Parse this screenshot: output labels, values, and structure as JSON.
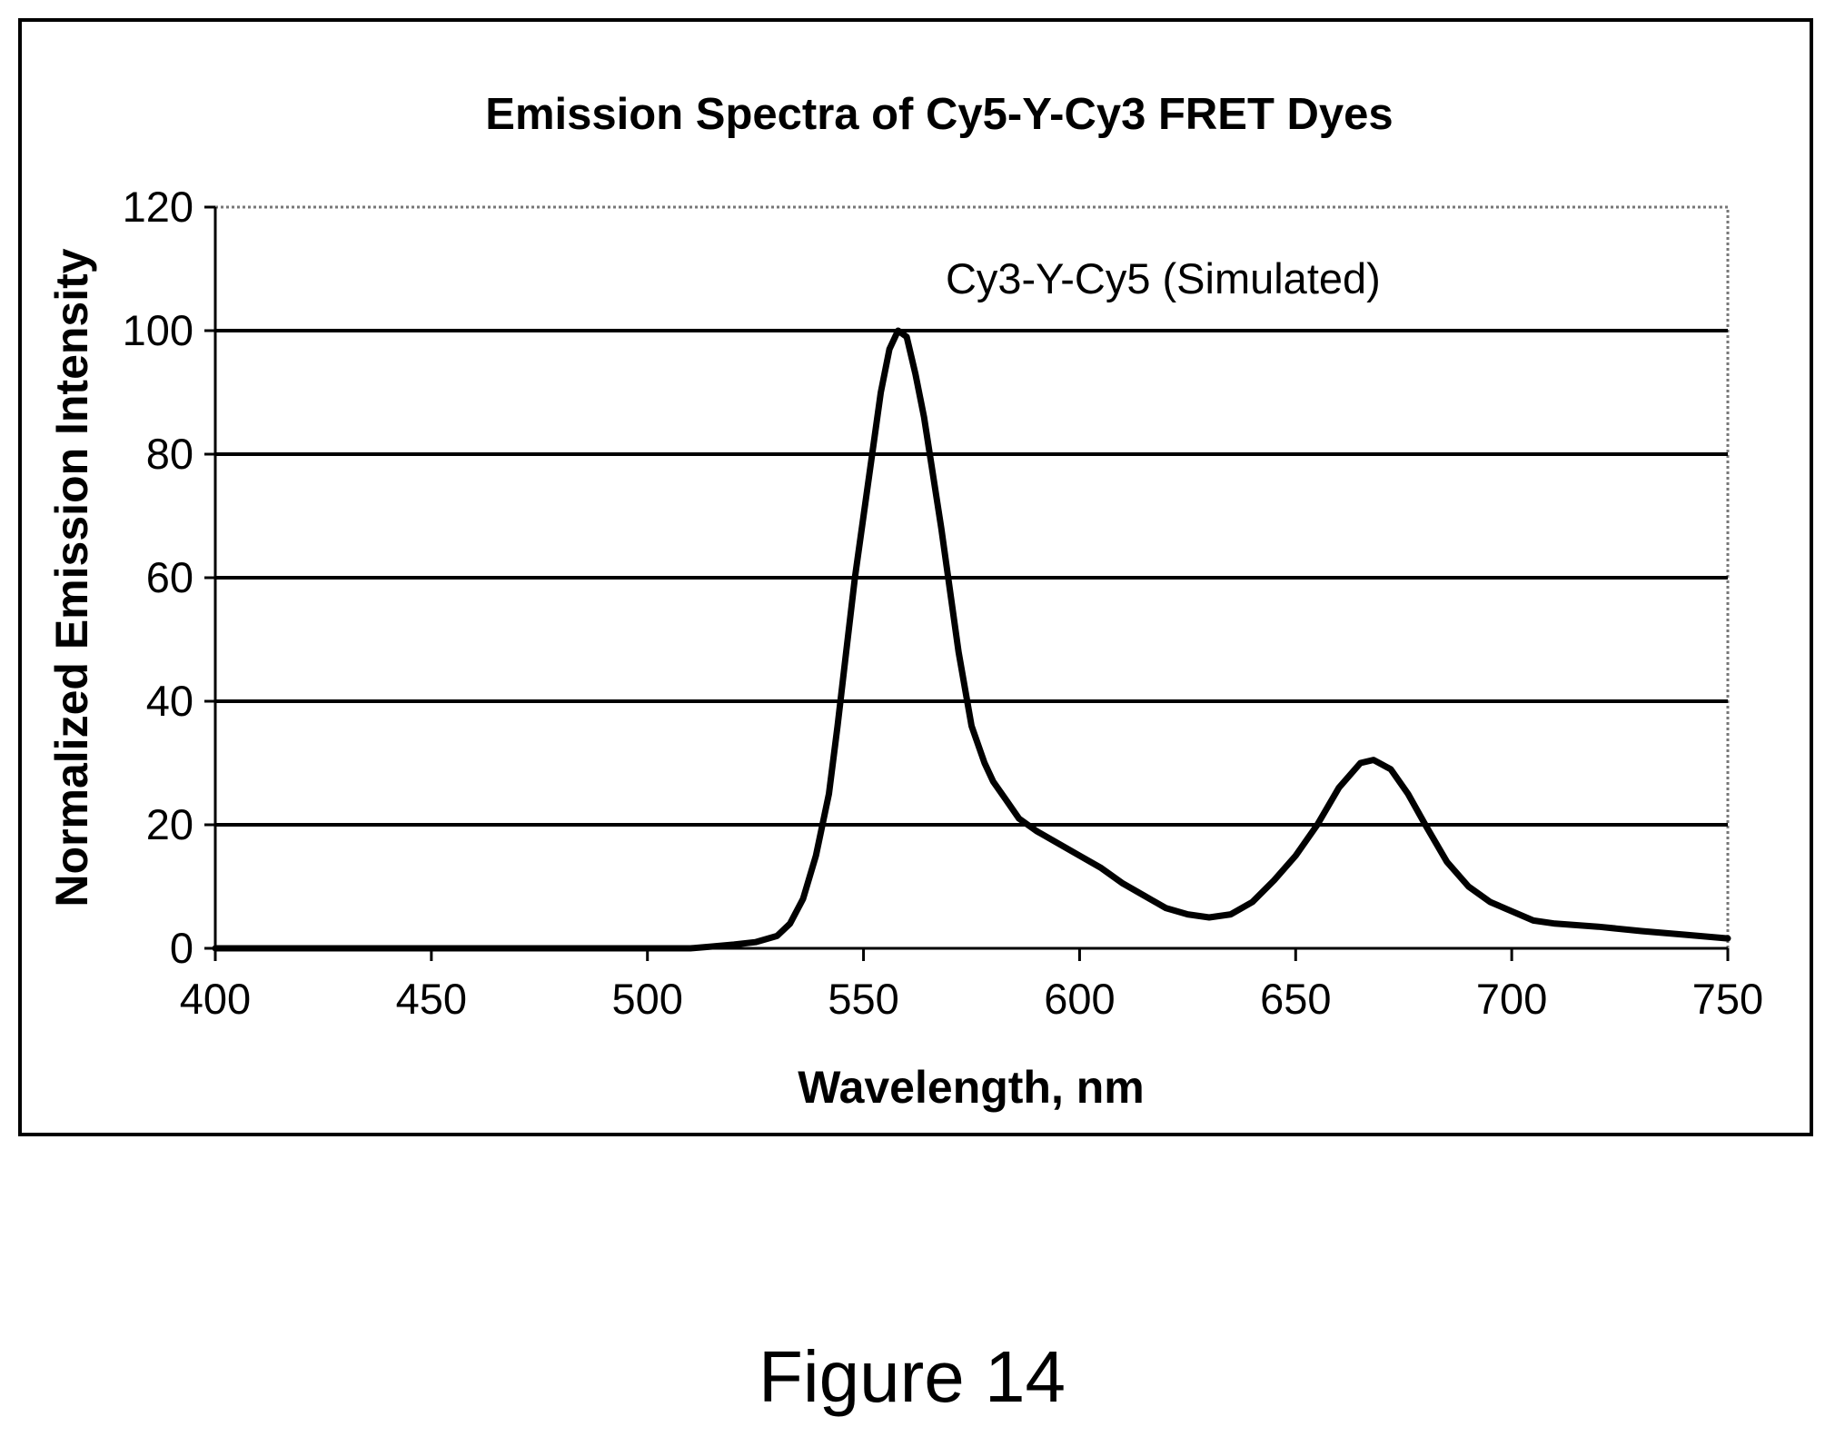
{
  "figure_caption": "Figure 14",
  "chart_data": {
    "type": "line",
    "title": "Emission Spectra of Cy5-Y-Cy3 FRET Dyes",
    "xlabel": "Wavelength, nm",
    "ylabel": "Normalized Emission Intensity",
    "xlim": [
      400,
      750
    ],
    "ylim": [
      0,
      120
    ],
    "x_ticks": [
      400,
      450,
      500,
      550,
      600,
      650,
      700,
      750
    ],
    "y_ticks": [
      0,
      20,
      40,
      60,
      80,
      100,
      120
    ],
    "x_tick_labels": [
      "400",
      "450",
      "500",
      "550",
      "600",
      "650",
      "700",
      "750"
    ],
    "y_tick_labels": [
      "0",
      "20",
      "40",
      "60",
      "80",
      "100",
      "120"
    ],
    "grid": "horizontal",
    "legend": "none",
    "annotation": {
      "text": "Cy3-Y-Cy5 (Simulated)",
      "x": 569,
      "y": 106
    },
    "series": [
      {
        "color": "#000000",
        "x": [
          400,
          450,
          500,
          510,
          515,
          520,
          525,
          530,
          533,
          536,
          539,
          542,
          544,
          546,
          548,
          550,
          552,
          554,
          556,
          558,
          560,
          562,
          564,
          566,
          568,
          570,
          572,
          575,
          578,
          580,
          583,
          586,
          590,
          595,
          600,
          605,
          610,
          615,
          620,
          625,
          630,
          635,
          640,
          645,
          650,
          655,
          660,
          665,
          668,
          672,
          676,
          680,
          685,
          690,
          695,
          700,
          705,
          710,
          720,
          730,
          740,
          750
        ],
        "y": [
          0,
          0,
          0,
          0,
          0.3,
          0.6,
          1,
          2,
          4,
          8,
          15,
          25,
          36,
          48,
          60,
          70,
          80,
          90,
          97,
          100,
          99,
          93,
          86,
          77,
          68,
          58,
          48,
          36,
          30,
          27,
          24,
          21,
          19,
          17,
          15,
          13,
          10.5,
          8.5,
          6.5,
          5.5,
          5,
          5.5,
          7.5,
          11,
          15,
          20,
          26,
          30,
          30.5,
          29,
          25,
          20,
          14,
          10,
          7.5,
          6,
          4.5,
          4,
          3.5,
          2.8,
          2.2,
          1.6
        ]
      }
    ]
  }
}
